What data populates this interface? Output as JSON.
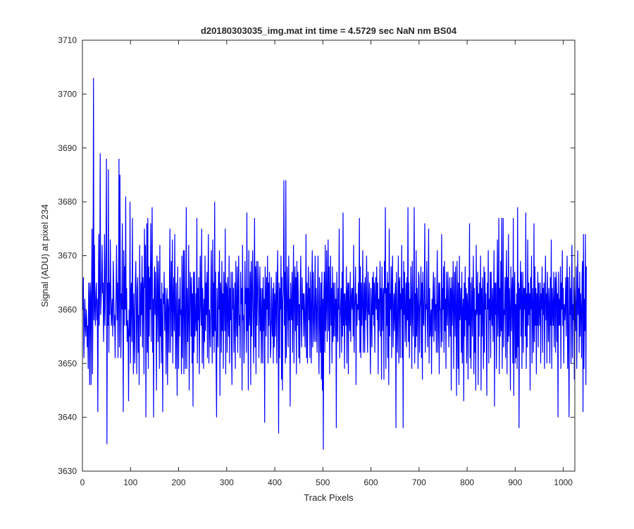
{
  "chart_data": {
    "type": "line",
    "title": "d20180303035_img.mat int time = 4.5729 sec  NaN nm BS04",
    "xlabel": "Track Pixels",
    "ylabel": "Signal (ADU) at pixel 234",
    "xlim": [
      0,
      1024
    ],
    "ylim": [
      3630,
      3710
    ],
    "xticks": [
      0,
      100,
      200,
      300,
      400,
      500,
      600,
      700,
      800,
      900,
      1000
    ],
    "yticks": [
      3630,
      3640,
      3650,
      3660,
      3670,
      3680,
      3690,
      3700,
      3710
    ],
    "grid": false,
    "legend": "none",
    "series": [
      {
        "color": "#0000ff",
        "x_start": 1,
        "x_step": 1,
        "values": [
          3660,
          3666,
          3651,
          3656,
          3662,
          3657,
          3655,
          3660,
          3658,
          3653,
          3657,
          3649,
          3665,
          3662,
          3646,
          3665,
          3663,
          3646,
          3664,
          3675,
          3648,
          3662,
          3703,
          3658,
          3672,
          3660,
          3657,
          3663,
          3665,
          3658,
          3662,
          3641,
          3660,
          3674,
          3657,
          3664,
          3689,
          3659,
          3662,
          3665,
          3672,
          3663,
          3665,
          3654,
          3660,
          3674,
          3657,
          3664,
          3672,
          3688,
          3635,
          3665,
          3657,
          3686,
          3652,
          3665,
          3659,
          3673,
          3664,
          3657,
          3659,
          3662,
          3655,
          3669,
          3665,
          3657,
          3659,
          3651,
          3660,
          3663,
          3672,
          3658,
          3665,
          3651,
          3662,
          3688,
          3653,
          3685,
          3665,
          3651,
          3663,
          3660,
          3676,
          3659,
          3641,
          3671,
          3657,
          3668,
          3660,
          3681,
          3657,
          3664,
          3654,
          3658,
          3656,
          3643,
          3660,
          3655,
          3680,
          3650,
          3663,
          3665,
          3654,
          3677,
          3660,
          3648,
          3663,
          3655,
          3650,
          3665,
          3669,
          3660,
          3648,
          3664,
          3666,
          3652,
          3659,
          3646,
          3672,
          3662,
          3655,
          3665,
          3659,
          3670,
          3653,
          3666,
          3663,
          3648,
          3675,
          3664,
          3672,
          3640,
          3663,
          3676,
          3652,
          3677,
          3649,
          3668,
          3655,
          3666,
          3660,
          3676,
          3654,
          3666,
          3679,
          3652,
          3662,
          3640,
          3663,
          3668,
          3659,
          3667,
          3660,
          3645,
          3670,
          3664,
          3654,
          3669,
          3661,
          3649,
          3672,
          3655,
          3662,
          3650,
          3665,
          3658,
          3641,
          3663,
          3661,
          3667,
          3656,
          3664,
          3660,
          3648,
          3661,
          3664,
          3646,
          3662,
          3660,
          3652,
          3665,
          3675,
          3652,
          3662,
          3669,
          3655,
          3673,
          3650,
          3662,
          3666,
          3656,
          3674,
          3659,
          3649,
          3665,
          3657,
          3644,
          3668,
          3660,
          3649,
          3662,
          3655,
          3666,
          3659,
          3660,
          3648,
          3670,
          3651,
          3662,
          3671,
          3648,
          3671,
          3660,
          3649,
          3662,
          3679,
          3649,
          3664,
          3654,
          3660,
          3672,
          3645,
          3657,
          3667,
          3664,
          3655,
          3666,
          3650,
          3663,
          3642,
          3667,
          3652,
          3667,
          3655,
          3658,
          3663,
          3656,
          3677,
          3650,
          3664,
          3658,
          3666,
          3648,
          3658,
          3670,
          3661,
          3657,
          3675,
          3650,
          3664,
          3660,
          3649,
          3662,
          3654,
          3670,
          3656,
          3665,
          3659,
          3667,
          3651,
          3664,
          3674,
          3650,
          3660,
          3658,
          3653,
          3664,
          3671,
          3657,
          3650,
          3673,
          3655,
          3665,
          3652,
          3680,
          3656,
          3667,
          3650,
          3640,
          3664,
          3658,
          3653,
          3667,
          3660,
          3671,
          3644,
          3665,
          3663,
          3652,
          3669,
          3656,
          3663,
          3649,
          3667,
          3662,
          3656,
          3675,
          3648,
          3665,
          3664,
          3652,
          3666,
          3659,
          3655,
          3670,
          3650,
          3664,
          3658,
          3667,
          3653,
          3646,
          3667,
          3660,
          3664,
          3652,
          3658,
          3665,
          3649,
          3669,
          3660,
          3655,
          3668,
          3652,
          3663,
          3670,
          3657,
          3659,
          3651,
          3667,
          3661,
          3664,
          3645,
          3672,
          3658,
          3659,
          3650,
          3656,
          3669,
          3661,
          3664,
          3652,
          3678,
          3656,
          3664,
          3645,
          3671,
          3657,
          3660,
          3667,
          3646,
          3669,
          3655,
          3663,
          3671,
          3659,
          3650,
          3662,
          3677,
          3653,
          3668,
          3648,
          3669,
          3657,
          3662,
          3669,
          3665,
          3651,
          3660,
          3668,
          3656,
          3664,
          3650,
          3660,
          3664,
          3650,
          3666,
          3656,
          3662,
          3639,
          3668,
          3663,
          3655,
          3666,
          3660,
          3670,
          3650,
          3665,
          3657,
          3667,
          3661,
          3651,
          3653,
          3666,
          3658,
          3655,
          3664,
          3650,
          3665,
          3653,
          3663,
          3655,
          3661,
          3667,
          3650,
          3663,
          3671,
          3658,
          3637,
          3665,
          3651,
          3664,
          3660,
          3670,
          3647,
          3666,
          3645,
          3662,
          3663,
          3684,
          3657,
          3667,
          3650,
          3684,
          3651,
          3660,
          3668,
          3659,
          3653,
          3670,
          3658,
          3662,
          3642,
          3665,
          3660,
          3658,
          3667,
          3652,
          3663,
          3672,
          3650,
          3664,
          3668,
          3656,
          3666,
          3648,
          3669,
          3657,
          3667,
          3663,
          3651,
          3661,
          3650,
          3664,
          3670,
          3658,
          3653,
          3666,
          3660,
          3663,
          3655,
          3663,
          3660,
          3653,
          3660,
          3674,
          3651,
          3665,
          3650,
          3662,
          3668,
          3658,
          3664,
          3651,
          3667,
          3661,
          3650,
          3664,
          3671,
          3653,
          3667,
          3659,
          3654,
          3662,
          3670,
          3654,
          3664,
          3660,
          3652,
          3663,
          3670,
          3656,
          3648,
          3666,
          3659,
          3652,
          3665,
          3647,
          3667,
          3645,
          3662,
          3634,
          3663,
          3667,
          3652,
          3672,
          3656,
          3661,
          3671,
          3654,
          3662,
          3673,
          3656,
          3668,
          3648,
          3662,
          3670,
          3657,
          3664,
          3650,
          3668,
          3654,
          3665,
          3655,
          3660,
          3665,
          3655,
          3662,
          3638,
          3667,
          3659,
          3654,
          3664,
          3660,
          3675,
          3651,
          3658,
          3661,
          3664,
          3652,
          3667,
          3655,
          3678,
          3657,
          3663,
          3649,
          3663,
          3660,
          3657,
          3668,
          3650,
          3663,
          3665,
          3648,
          3665,
          3659,
          3656,
          3667,
          3654,
          3662,
          3664,
          3660,
          3664,
          3655,
          3672,
          3652,
          3660,
          3663,
          3668,
          3646,
          3663,
          3657,
          3661,
          3660,
          3665,
          3658,
          3677,
          3652,
          3668,
          3651,
          3665,
          3657,
          3662,
          3671,
          3652,
          3660,
          3665,
          3652,
          3666,
          3658,
          3661,
          3670,
          3657,
          3652,
          3667,
          3660,
          3659,
          3665,
          3655,
          3648,
          3664,
          3660,
          3653,
          3666,
          3659,
          3667,
          3657,
          3665,
          3652,
          3662,
          3666,
          3660,
          3668,
          3658,
          3665,
          3648,
          3662,
          3656,
          3663,
          3669,
          3655,
          3664,
          3647,
          3668,
          3656,
          3662,
          3664,
          3647,
          3669,
          3663,
          3679,
          3649,
          3664,
          3657,
          3667,
          3651,
          3665,
          3646,
          3675,
          3655,
          3663,
          3660,
          3668,
          3651,
          3665,
          3670,
          3653,
          3659,
          3663,
          3656,
          3662,
          3665,
          3638,
          3667,
          3659,
          3652,
          3662,
          3670,
          3650,
          3665,
          3666,
          3651,
          3663,
          3660,
          3672,
          3651,
          3664,
          3638,
          3669,
          3659,
          3667,
          3654,
          3660,
          3665,
          3653,
          3666,
          3658,
          3679,
          3654,
          3665,
          3651,
          3662,
          3657,
          3668,
          3661,
          3649,
          3669,
          3660,
          3655,
          3665,
          3679,
          3650,
          3663,
          3653,
          3671,
          3655,
          3664,
          3660,
          3649,
          3667,
          3666,
          3652,
          3660,
          3662,
          3668,
          3651,
          3665,
          3647,
          3667,
          3658,
          3657,
          3664,
          3676,
          3652,
          3661,
          3660,
          3669,
          3659,
          3653,
          3662,
          3675,
          3650,
          3664,
          3655,
          3658,
          3660,
          3648,
          3662,
          3655,
          3663,
          3667,
          3654,
          3660,
          3666,
          3656,
          3661,
          3652,
          3664,
          3671,
          3652,
          3659,
          3665,
          3648,
          3665,
          3660,
          3660,
          3653,
          3674,
          3654,
          3664,
          3660,
          3668,
          3652,
          3669,
          3656,
          3662,
          3649,
          3667,
          3660,
          3657,
          3667,
          3663,
          3653,
          3661,
          3666,
          3655,
          3664,
          3645,
          3666,
          3657,
          3662,
          3669,
          3649,
          3661,
          3667,
          3655,
          3668,
          3660,
          3644,
          3669,
          3662,
          3649,
          3665,
          3646,
          3670,
          3658,
          3660,
          3664,
          3652,
          3667,
          3650,
          3660,
          3662,
          3643,
          3665,
          3655,
          3668,
          3658,
          3664,
          3650,
          3663,
          3661,
          3647,
          3666,
          3657,
          3676,
          3651,
          3665,
          3649,
          3660,
          3666,
          3655,
          3662,
          3670,
          3648,
          3664,
          3652,
          3660,
          3645,
          3672,
          3659,
          3660,
          3667,
          3646,
          3663,
          3655,
          3665,
          3659,
          3670,
          3645,
          3664,
          3655,
          3666,
          3660,
          3649,
          3668,
          3652,
          3667,
          3660,
          3663,
          3656,
          3644,
          3665,
          3660,
          3671,
          3650,
          3662,
          3658,
          3667,
          3651,
          3667,
          3660,
          3657,
          3664,
          3654,
          3662,
          3671,
          3642,
          3665,
          3659,
          3665,
          3649,
          3661,
          3673,
          3655,
          3660,
          3677,
          3648,
          3664,
          3655,
          3669,
          3656,
          3677,
          3649,
          3660,
          3677,
          3653,
          3660,
          3659,
          3666,
          3651,
          3665,
          3671,
          3648,
          3666,
          3654,
          3674,
          3655,
          3664,
          3660,
          3645,
          3668,
          3656,
          3663,
          3666,
          3650,
          3677,
          3644,
          3663,
          3667,
          3650,
          3661,
          3651,
          3663,
          3649,
          3679,
          3653,
          3665,
          3638,
          3664,
          3660,
          3669,
          3655,
          3667,
          3649,
          3662,
          3667,
          3652,
          3664,
          3660,
          3664,
          3655,
          3678,
          3649,
          3663,
          3653,
          3673,
          3657,
          3665,
          3659,
          3663,
          3645,
          3666,
          3660,
          3670,
          3650,
          3664,
          3660,
          3652,
          3676,
          3654,
          3668,
          3657,
          3664,
          3648,
          3663,
          3657,
          3667,
          3653,
          3665,
          3660,
          3657,
          3665,
          3650,
          3663,
          3660,
          3668,
          3652,
          3664,
          3659,
          3665,
          3649,
          3662,
          3670,
          3658,
          3663,
          3650,
          3667,
          3661,
          3654,
          3664,
          3661,
          3650,
          3666,
          3657,
          3673,
          3649,
          3664,
          3660,
          3657,
          3667,
          3653,
          3661,
          3666,
          3652,
          3667,
          3664,
          3654,
          3663,
          3640,
          3667,
          3657,
          3662,
          3657,
          3668,
          3649,
          3665,
          3660,
          3671,
          3657,
          3664,
          3650,
          3661,
          3658,
          3660,
          3666,
          3655,
          3664,
          3670,
          3649,
          3666,
          3654,
          3640,
          3668,
          3659,
          3664,
          3650,
          3663,
          3672,
          3651,
          3661,
          3658,
          3666,
          3647,
          3664,
          3660,
          3656,
          3668,
          3649,
          3660,
          3671,
          3659,
          3664,
          3652,
          3667,
          3655,
          3663,
          3660,
          3651,
          3666,
          3669,
          3641,
          3674,
          3649,
          3662,
          3656,
          3674,
          3646,
          3668
        ]
      }
    ]
  }
}
